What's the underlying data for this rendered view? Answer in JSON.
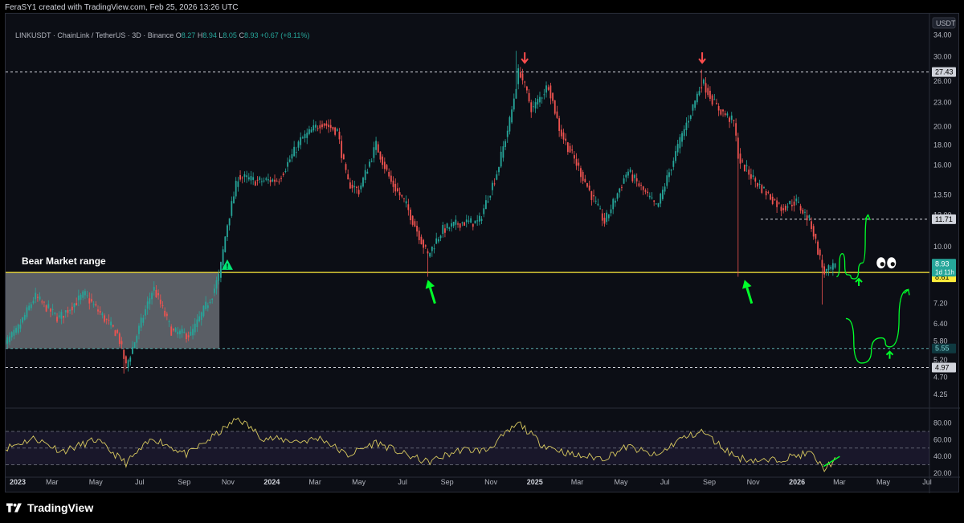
{
  "header": {
    "attribution": "FeraSY1 created with TradingView.com, Feb 25, 2026 13:26 UTC"
  },
  "legend": {
    "symbol": "LINKUSDT · ChainLink / TetherUS · 3D · Binance",
    "open_label": "O",
    "open": "8.27",
    "high_label": "H",
    "high": "8.94",
    "low_label": "L",
    "low": "8.05",
    "close_label": "C",
    "close": "8.93",
    "change": "+0.67 (+8.11%)"
  },
  "currency": "USDT",
  "annotation": {
    "text": "Bear Market range",
    "warning_icon": "warning-triangle-icon",
    "eyes_icon": "eyes-icon"
  },
  "footer": {
    "brand": "TradingView"
  },
  "colors": {
    "up": "#26a69a",
    "down": "#ef5350",
    "key_level": "#ffeb3b",
    "arrow": "#00ff2a",
    "rsi_line": "#d8c95f",
    "last_price_tag": "#26a69a"
  },
  "chart_data": [
    {
      "type": "candlestick",
      "symbol": "LINKUSDT",
      "timeframe": "3D",
      "yscale": "log",
      "ylim": [
        3.95,
        36
      ],
      "y_ticks": [
        "34.00",
        "30.00",
        "26.00",
        "23.00",
        "20.00",
        "18.00",
        "16.00",
        "13.50",
        "12.00",
        "10.00",
        "8.80",
        "7.20",
        "6.40",
        "5.80",
        "5.20",
        "4.70",
        "4.25"
      ],
      "x_ticks": [
        {
          "label": "2023",
          "bold": true,
          "date": "2023-01-01"
        },
        {
          "label": "Mar",
          "date": "2023-03-01"
        },
        {
          "label": "May",
          "date": "2023-05-01"
        },
        {
          "label": "Jul",
          "date": "2023-07-01"
        },
        {
          "label": "Sep",
          "date": "2023-09-01"
        },
        {
          "label": "Nov",
          "date": "2023-11-01"
        },
        {
          "label": "2024",
          "bold": true,
          "date": "2024-01-01"
        },
        {
          "label": "Mar",
          "date": "2024-03-01"
        },
        {
          "label": "May",
          "date": "2024-05-01"
        },
        {
          "label": "Jul",
          "date": "2024-07-01"
        },
        {
          "label": "Sep",
          "date": "2024-09-01"
        },
        {
          "label": "Nov",
          "date": "2024-11-01"
        },
        {
          "label": "2025",
          "bold": true,
          "date": "2025-01-01"
        },
        {
          "label": "Mar",
          "date": "2025-03-01"
        },
        {
          "label": "May",
          "date": "2025-05-01"
        },
        {
          "label": "Jul",
          "date": "2025-07-01"
        },
        {
          "label": "Sep",
          "date": "2025-09-01"
        },
        {
          "label": "Nov",
          "date": "2025-11-01"
        },
        {
          "label": "2026",
          "bold": true,
          "date": "2026-01-01"
        },
        {
          "label": "Mar",
          "date": "2026-03-01"
        },
        {
          "label": "May",
          "date": "2026-05-01"
        },
        {
          "label": "Jul",
          "date": "2026-07-01"
        }
      ],
      "path_points": [
        [
          "2022-12-20",
          5.6
        ],
        [
          "2023-01-10",
          6.1
        ],
        [
          "2023-02-05",
          7.5
        ],
        [
          "2023-03-10",
          6.6
        ],
        [
          "2023-04-15",
          7.6
        ],
        [
          "2023-05-01",
          7.0
        ],
        [
          "2023-06-01",
          6.0
        ],
        [
          "2023-06-12",
          5.0
        ],
        [
          "2023-07-01",
          6.3
        ],
        [
          "2023-07-20",
          7.9
        ],
        [
          "2023-08-15",
          6.1
        ],
        [
          "2023-09-10",
          6.0
        ],
        [
          "2023-10-10",
          7.6
        ],
        [
          "2023-10-20",
          8.5
        ],
        [
          "2023-10-30",
          11.2
        ],
        [
          "2023-11-15",
          15.0
        ],
        [
          "2023-12-10",
          14.6
        ],
        [
          "2024-01-10",
          14.7
        ],
        [
          "2024-02-10",
          18.5
        ],
        [
          "2024-03-10",
          20.5
        ],
        [
          "2024-04-01",
          19.5
        ],
        [
          "2024-04-15",
          14.5
        ],
        [
          "2024-05-01",
          13.8
        ],
        [
          "2024-05-25",
          18.0
        ],
        [
          "2024-06-15",
          14.5
        ],
        [
          "2024-07-05",
          12.8
        ],
        [
          "2024-08-05",
          9.5
        ],
        [
          "2024-08-25",
          11.0
        ],
        [
          "2024-09-20",
          11.5
        ],
        [
          "2024-10-15",
          11.5
        ],
        [
          "2024-11-10",
          15.5
        ],
        [
          "2024-11-28",
          21.0
        ],
        [
          "2024-12-10",
          28.0
        ],
        [
          "2024-12-28",
          22.0
        ],
        [
          "2025-01-20",
          25.5
        ],
        [
          "2025-02-05",
          19.5
        ],
        [
          "2025-03-01",
          16.0
        ],
        [
          "2025-04-08",
          11.5
        ],
        [
          "2025-05-10",
          15.5
        ],
        [
          "2025-06-20",
          12.5
        ],
        [
          "2025-07-20",
          18.0
        ],
        [
          "2025-08-22",
          26.0
        ],
        [
          "2025-09-10",
          22.5
        ],
        [
          "2025-10-05",
          20.5
        ],
        [
          "2025-10-12",
          16.5
        ],
        [
          "2025-11-05",
          14.5
        ],
        [
          "2025-12-10",
          12.5
        ],
        [
          "2025-12-30",
          13.0
        ],
        [
          "2026-01-20",
          11.5
        ],
        [
          "2026-02-07",
          8.6
        ],
        [
          "2026-02-25",
          8.93
        ]
      ],
      "wicks": [
        {
          "date": "2023-06-10",
          "low": 4.8
        },
        {
          "date": "2024-08-05",
          "low": 8.4
        },
        {
          "date": "2024-12-05",
          "high": 31.0
        },
        {
          "date": "2025-08-22",
          "high": 27.8
        },
        {
          "date": "2025-10-11",
          "low": 8.4
        },
        {
          "date": "2026-02-06",
          "low": 7.15
        }
      ],
      "price_levels": [
        {
          "value": 27.43,
          "label": "27.43",
          "style": "dashed"
        },
        {
          "value": 11.71,
          "label": "11.71",
          "style": "dashed-right"
        },
        {
          "value": 8.61,
          "label": "8.61",
          "style": "solid-yellow"
        },
        {
          "value": 5.55,
          "label": "5.55",
          "style": "dashed-teal"
        },
        {
          "value": 4.97,
          "label": "4.97",
          "style": "dashed"
        }
      ],
      "last_price": {
        "value": 8.93,
        "label": "8.93",
        "countdown": "1d 11h"
      },
      "range_box": {
        "from": "2022-12-20",
        "to": "2023-10-20",
        "low": 5.55,
        "high": 8.61
      },
      "red_arrows": [
        {
          "date": "2024-12-18",
          "price": 29.6
        },
        {
          "date": "2025-08-22",
          "price": 29.6
        }
      ],
      "green_arrows": [
        {
          "from": [
            "2024-08-15",
            7.2
          ],
          "to": [
            "2024-08-05",
            8.25
          ]
        },
        {
          "from": [
            "2025-10-30",
            7.2
          ],
          "to": [
            "2025-10-20",
            8.25
          ]
        }
      ],
      "projections": [
        {
          "points": [
            [
              "2026-02-25",
              8.4
            ],
            [
              "2026-03-05",
              9.6
            ],
            [
              "2026-03-12",
              8.5
            ],
            [
              "2026-03-22",
              8.3
            ],
            [
              "2026-04-02",
              9.1
            ],
            [
              "2026-04-10",
              12.0
            ]
          ]
        },
        {
          "points": [
            [
              "2026-03-10",
              6.6
            ],
            [
              "2026-04-01",
              5.1
            ],
            [
              "2026-04-28",
              5.9
            ],
            [
              "2026-05-10",
              5.6
            ],
            [
              "2026-06-05",
              7.8
            ]
          ]
        }
      ],
      "small_up_arrows": [
        [
          "2026-03-28",
          8.3
        ],
        [
          "2026-05-10",
          5.45
        ]
      ]
    },
    {
      "type": "line",
      "name": "RSI",
      "ylim": [
        16,
        96
      ],
      "y_ticks": [
        "80.00",
        "60.00",
        "40.00",
        "20.00"
      ],
      "bands": [
        70,
        50,
        30
      ],
      "path_points": [
        [
          "2022-12-20",
          48
        ],
        [
          "2023-02-05",
          62
        ],
        [
          "2023-03-15",
          46
        ],
        [
          "2023-05-01",
          60
        ],
        [
          "2023-06-12",
          32
        ],
        [
          "2023-07-20",
          62
        ],
        [
          "2023-09-05",
          42
        ],
        [
          "2023-10-25",
          72
        ],
        [
          "2023-11-15",
          86
        ],
        [
          "2023-12-20",
          62
        ],
        [
          "2024-02-10",
          58
        ],
        [
          "2024-03-10",
          62
        ],
        [
          "2024-04-15",
          41
        ],
        [
          "2024-05-25",
          57
        ],
        [
          "2024-07-05",
          42
        ],
        [
          "2024-08-05",
          33
        ],
        [
          "2024-09-20",
          48
        ],
        [
          "2024-10-25",
          47
        ],
        [
          "2024-12-10",
          80
        ],
        [
          "2025-01-10",
          55
        ],
        [
          "2025-02-25",
          41
        ],
        [
          "2025-04-08",
          38
        ],
        [
          "2025-05-10",
          52
        ],
        [
          "2025-06-20",
          40
        ],
        [
          "2025-07-20",
          60
        ],
        [
          "2025-08-22",
          70
        ],
        [
          "2025-09-25",
          47
        ],
        [
          "2025-10-12",
          38
        ],
        [
          "2025-11-20",
          34
        ],
        [
          "2025-12-20",
          39
        ],
        [
          "2026-01-20",
          44
        ],
        [
          "2026-02-07",
          25
        ],
        [
          "2026-02-25",
          37
        ]
      ],
      "trendline": [
        [
          "2026-02-07",
          28
        ],
        [
          "2026-02-25",
          40
        ]
      ]
    }
  ]
}
